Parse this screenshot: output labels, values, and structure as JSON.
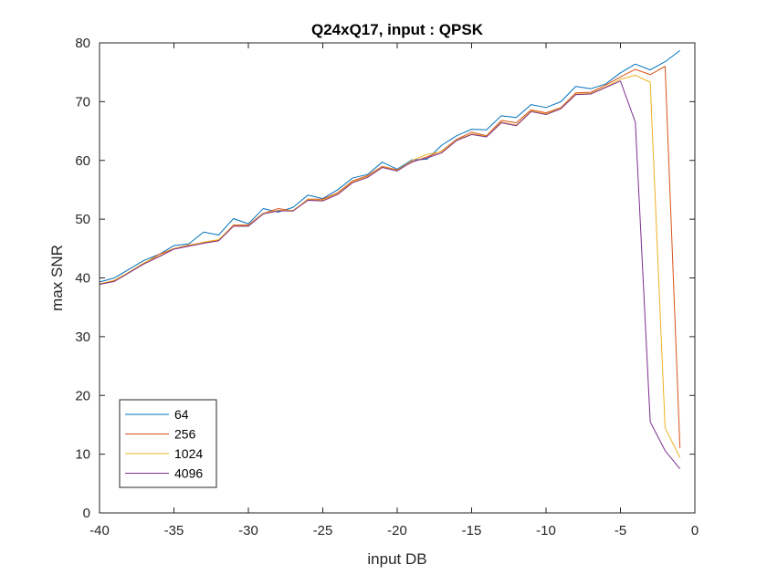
{
  "chart_data": {
    "type": "line",
    "title": "Q24xQ17, input : QPSK",
    "xlabel": "input DB",
    "ylabel": "max SNR",
    "xlim": [
      -40,
      0
    ],
    "ylim": [
      0,
      80
    ],
    "xticks": [
      -40,
      -35,
      -30,
      -25,
      -20,
      -15,
      -10,
      -5,
      0
    ],
    "yticks": [
      0,
      10,
      20,
      30,
      40,
      50,
      60,
      70,
      80
    ],
    "grid": false,
    "legend_position": "bottom-left",
    "x": [
      -40,
      -39,
      -38,
      -37,
      -36,
      -35,
      -34,
      -33,
      -32,
      -31,
      -30,
      -29,
      -28,
      -27,
      -26,
      -25,
      -24,
      -23,
      -22,
      -21,
      -20,
      -19,
      -18,
      -17,
      -16,
      -15,
      -14,
      -13,
      -12,
      -11,
      -10,
      -9,
      -8,
      -7,
      -6,
      -5,
      -4,
      -3,
      -2,
      -1
    ],
    "series": [
      {
        "name": "64",
        "color": "#0072BD",
        "values": [
          39.3,
          40.0,
          41.5,
          43.0,
          44.0,
          45.5,
          45.8,
          47.8,
          47.3,
          50.1,
          49.2,
          51.8,
          51.2,
          52.0,
          54.1,
          53.5,
          55.0,
          57.0,
          57.6,
          59.7,
          58.5,
          60.1,
          60.2,
          62.6,
          64.2,
          65.3,
          65.2,
          67.6,
          67.3,
          69.5,
          69.0,
          70.0,
          72.6,
          72.2,
          73.0,
          74.9,
          76.4,
          75.4,
          76.8,
          78.7
        ]
      },
      {
        "name": "256",
        "color": "#D95319",
        "values": [
          39.0,
          39.5,
          41.0,
          42.5,
          44.0,
          45.0,
          45.6,
          46.0,
          46.4,
          49.0,
          49.0,
          51.0,
          51.8,
          51.4,
          53.4,
          53.4,
          54.5,
          56.5,
          57.4,
          59.0,
          58.4,
          59.7,
          60.6,
          61.6,
          63.6,
          64.8,
          64.2,
          66.8,
          66.4,
          68.6,
          68.1,
          69.0,
          71.5,
          71.6,
          72.8,
          74.2,
          75.5,
          74.6,
          76.0,
          11.0
        ]
      },
      {
        "name": "1024",
        "color": "#EDB120",
        "values": [
          39.0,
          39.6,
          41.0,
          42.6,
          43.7,
          45.0,
          45.5,
          46.1,
          46.5,
          48.9,
          48.9,
          51.0,
          51.5,
          51.5,
          53.3,
          53.2,
          54.3,
          56.3,
          57.2,
          58.9,
          58.3,
          60.0,
          61.0,
          61.5,
          63.5,
          64.5,
          64.1,
          66.5,
          66.0,
          68.4,
          67.9,
          68.9,
          71.3,
          71.4,
          72.5,
          73.8,
          74.5,
          73.3,
          14.5,
          9.4
        ]
      },
      {
        "name": "4096",
        "color": "#7E2F8E",
        "values": [
          38.9,
          39.4,
          40.9,
          42.4,
          43.6,
          44.9,
          45.4,
          45.9,
          46.3,
          48.8,
          48.8,
          50.9,
          51.4,
          51.4,
          53.2,
          53.1,
          54.2,
          56.2,
          57.1,
          58.8,
          58.2,
          59.8,
          60.4,
          61.3,
          63.4,
          64.4,
          64.0,
          66.4,
          65.9,
          68.3,
          67.8,
          68.8,
          71.2,
          71.3,
          72.4,
          73.5,
          66.5,
          15.5,
          10.6,
          7.5
        ]
      }
    ]
  }
}
